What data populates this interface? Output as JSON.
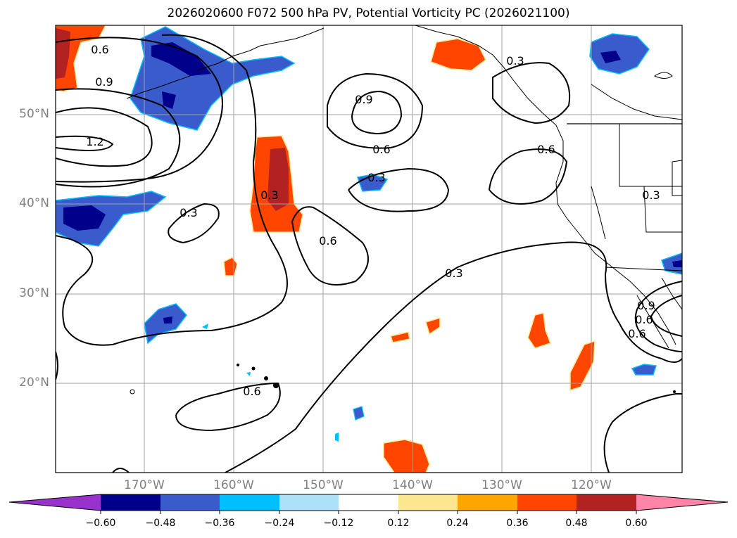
{
  "title": "2026020600 F072 500 hPa PV, Potential Vorticity PC (2026021100)",
  "lat_labels": [
    "50°N",
    "40°N",
    "30°N",
    "20°N"
  ],
  "lon_labels": [
    "170°W",
    "160°W",
    "150°W",
    "140°W",
    "130°W",
    "120°W"
  ],
  "contour_labels": [
    "0.6",
    "0.9",
    "1.2",
    "0.9",
    "0.6",
    "0.3",
    "0.3",
    "0.3",
    "0.6",
    "0.3",
    "0.3",
    "0.6",
    "0.6",
    "0.6",
    "0.3",
    "0.9",
    "0.6"
  ],
  "colorbar": {
    "ticks": [
      "−0.60",
      "−0.48",
      "−0.36",
      "−0.24",
      "−0.12",
      "0.12",
      "0.24",
      "0.36",
      "0.48",
      "0.60"
    ],
    "colors": [
      "#9932CC",
      "#00008B",
      "#3A5BCB",
      "#00BFFF",
      "#ADE1FA",
      "#FFFFFF",
      "#FCE690",
      "#FFA500",
      "#FF4500",
      "#B22222",
      "#FF85A8"
    ]
  },
  "colors": {
    "land_line": "#000000",
    "grid": "#a0a0a0",
    "contour": "#000000"
  }
}
